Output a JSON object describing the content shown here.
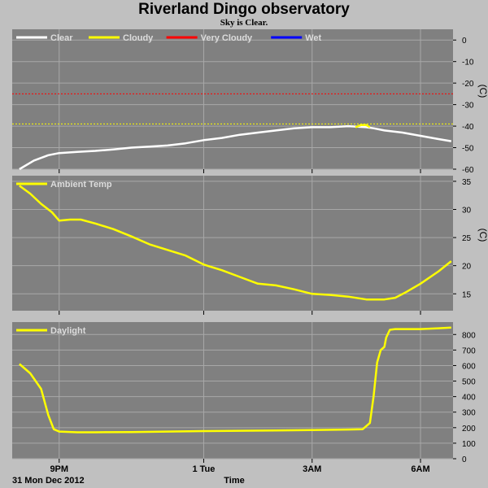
{
  "title": "Riverland Dingo observatory",
  "subtitle": "Sky is Clear.",
  "date_label": "31 Mon Dec 2012",
  "xaxis": {
    "label": "Time",
    "ticks": [
      "9PM",
      "1 Tue",
      "3AM",
      "6AM"
    ]
  },
  "chart_data": [
    {
      "type": "line",
      "ylabel": "(C)",
      "ylim": [
        -60,
        5
      ],
      "yticks": [
        0,
        -10,
        -20,
        -30,
        -40,
        -50,
        -60
      ],
      "grid": true,
      "legend": [
        {
          "name": "Clear",
          "color": "#ffffff"
        },
        {
          "name": "Cloudy",
          "color": "#ffff00"
        },
        {
          "name": "Very Cloudy",
          "color": "#ff0000"
        },
        {
          "name": "Wet",
          "color": "#0000ff"
        }
      ],
      "thresholds": [
        {
          "name": "Very Cloudy",
          "value": -25,
          "color": "#ff0000"
        },
        {
          "name": "Cloudy",
          "value": -39,
          "color": "#ffff00"
        }
      ],
      "series": [
        {
          "name": "Clear",
          "color": "#ffffff",
          "x": [
            19.9,
            20.3,
            20.7,
            21.0,
            21.5,
            22.0,
            22.5,
            23.0,
            23.5,
            24.0,
            24.5,
            25.0,
            25.5,
            26.0,
            26.5,
            27.0,
            27.5,
            28.0,
            28.5,
            29.0,
            29.5,
            29.7,
            30.0,
            30.5,
            31.0,
            31.5,
            31.85
          ],
          "y": [
            -60,
            -56,
            -53.5,
            -52.5,
            -52,
            -51.5,
            -50.8,
            -50,
            -49.5,
            -49,
            -48,
            -46.5,
            -45.5,
            -44,
            -43,
            -42,
            -41,
            -40.5,
            -40.5,
            -40,
            -40.5,
            -41,
            -42,
            -43,
            -44.5,
            -46,
            -47
          ]
        },
        {
          "name": "Cloudy",
          "color": "#ffff00",
          "x": [
            29.2,
            29.35,
            29.5,
            29.6
          ],
          "y": [
            -40.5,
            -39.5,
            -39.5,
            -40.5
          ]
        }
      ]
    },
    {
      "type": "line",
      "ylabel": "(C)",
      "ylim": [
        12,
        36
      ],
      "yticks": [
        35,
        30,
        25,
        20,
        15
      ],
      "grid": true,
      "legend": [
        {
          "name": "Ambient Temp",
          "color": "#ffff00"
        }
      ],
      "series": [
        {
          "name": "Ambient Temp",
          "color": "#ffff00",
          "x": [
            19.9,
            20.2,
            20.5,
            20.8,
            21.0,
            21.3,
            21.6,
            22.0,
            22.5,
            23.0,
            23.5,
            24.0,
            24.5,
            25.0,
            25.5,
            26.0,
            26.5,
            27.0,
            27.5,
            28.0,
            28.5,
            29.0,
            29.5,
            30.0,
            30.3,
            30.6,
            31.0,
            31.5,
            31.85
          ],
          "y": [
            34.2,
            32.8,
            31.0,
            29.5,
            28.0,
            28.2,
            28.2,
            27.5,
            26.5,
            25.2,
            23.8,
            22.8,
            21.8,
            20.2,
            19.2,
            18.0,
            16.8,
            16.5,
            15.8,
            15.0,
            14.8,
            14.5,
            14.0,
            14.0,
            14.3,
            15.3,
            16.8,
            19.0,
            20.8
          ]
        }
      ]
    },
    {
      "type": "line",
      "ylabel": "",
      "ylim": [
        0,
        880
      ],
      "yticks": [
        800,
        700,
        600,
        500,
        400,
        300,
        200,
        100,
        0
      ],
      "grid": true,
      "legend": [
        {
          "name": "Daylight",
          "color": "#ffff00"
        }
      ],
      "series": [
        {
          "name": "Daylight",
          "color": "#ffff00",
          "x": [
            19.9,
            20.2,
            20.5,
            20.7,
            20.85,
            21.0,
            21.5,
            22.0,
            23.0,
            24.0,
            25.0,
            26.0,
            27.0,
            28.0,
            29.0,
            29.4,
            29.6,
            29.7,
            29.8,
            29.9,
            30.0,
            30.05,
            30.15,
            30.3,
            31.0,
            31.5,
            31.85
          ],
          "y": [
            610,
            550,
            450,
            280,
            190,
            175,
            170,
            170,
            172,
            175,
            178,
            180,
            182,
            185,
            188,
            190,
            230,
            400,
            620,
            700,
            720,
            780,
            830,
            835,
            835,
            840,
            845
          ]
        }
      ]
    }
  ]
}
